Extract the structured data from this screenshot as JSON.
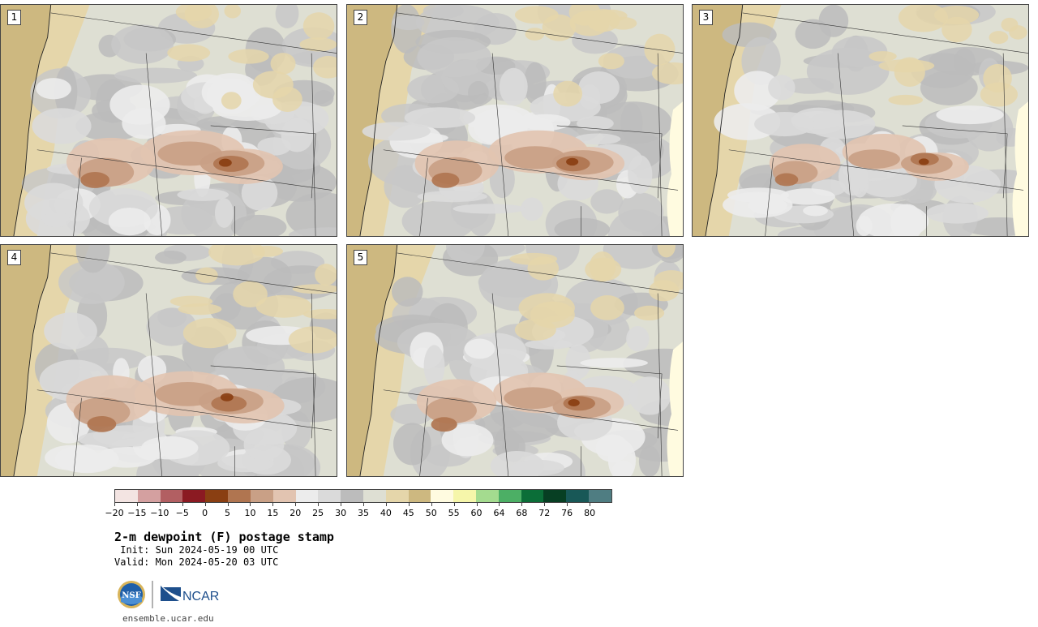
{
  "panels": [
    {
      "label": "1"
    },
    {
      "label": "2"
    },
    {
      "label": "3"
    },
    {
      "label": "4"
    },
    {
      "label": "5"
    }
  ],
  "colorbar": {
    "colors": [
      "#f3e4e2",
      "#d4a0a0",
      "#b25f62",
      "#8b1a22",
      "#8a3f12",
      "#b07550",
      "#c9a086",
      "#e2c4b1",
      "#ececec",
      "#dadada",
      "#bcbcbc",
      "#dedfd3",
      "#e5d6aa",
      "#cdb880",
      "#fffbe0",
      "#f6f6aa",
      "#a4db8f",
      "#4caf65",
      "#0b6e38",
      "#073f23",
      "#185857",
      "#4f7d82"
    ],
    "tick_labels": [
      "−20",
      "−15",
      "−10",
      "−5",
      "0",
      "5",
      "10",
      "15",
      "20",
      "25",
      "30",
      "35",
      "40",
      "45",
      "50",
      "55",
      "60",
      "64",
      "68",
      "72",
      "76",
      "80"
    ]
  },
  "title": "2-m dewpoint (F) postage stamp",
  "init": " Init: Sun 2024-05-19 00 UTC",
  "valid": "Valid: Mon 2024-05-20 03 UTC",
  "logos": {
    "nsf": "NSF",
    "ncar": "NCAR"
  },
  "url": "ensemble.ucar.edu"
}
